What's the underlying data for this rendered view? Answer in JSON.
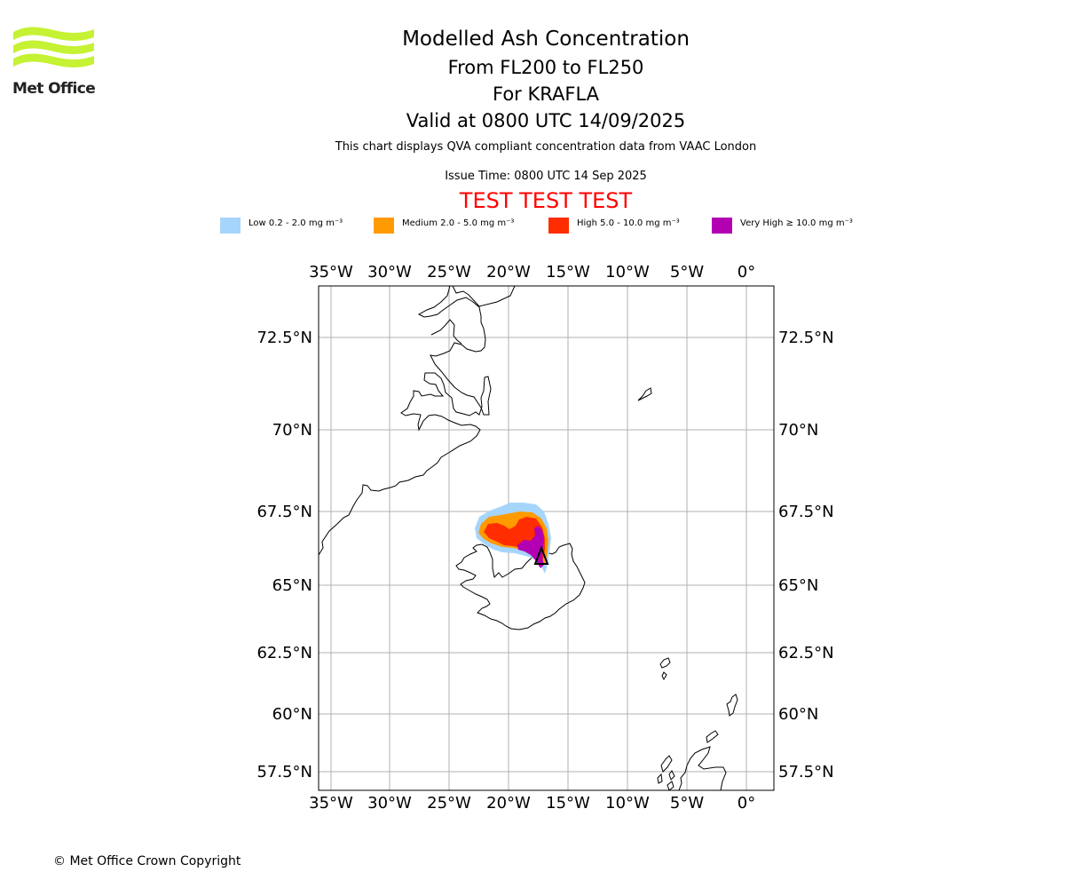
{
  "header": {
    "logo_text": "Met Office",
    "title": "Modelled Ash Concentration",
    "flight_levels": "From FL200 to FL250",
    "volcano": "For KRAFLA",
    "valid_time": "Valid at 0800 UTC 14/09/2025",
    "description": "This chart displays QVA compliant concentration data from VAAC London",
    "issue_time": "Issue Time: 0800 UTC 14 Sep 2025",
    "test_banner": "TEST TEST TEST"
  },
  "legend": [
    {
      "label": "Low 0.2 - 2.0 mg m⁻³",
      "color": "#a6d5fb"
    },
    {
      "label": "Medium 2.0 - 5.0 mg m⁻³",
      "color": "#ff9a00"
    },
    {
      "label": "High 5.0 - 10.0 mg m⁻³",
      "color": "#ff2d00"
    },
    {
      "label": "Very High ≥ 10.0 mg m⁻³",
      "color": "#b200b2"
    }
  ],
  "map": {
    "lon_ticks": [
      "35°W",
      "30°W",
      "25°W",
      "20°W",
      "15°W",
      "10°W",
      "5°W",
      "0°"
    ],
    "lat_ticks": [
      "72.5°N",
      "70°N",
      "67.5°N",
      "65°N",
      "62.5°N",
      "60°N",
      "57.5°N"
    ],
    "gridlines": true,
    "gridline_color": "#b0b0b0",
    "coastline_color": "#000000",
    "volcano_marker": "triangle-icon"
  },
  "footer": {
    "copyright": "© Met Office Crown Copyright"
  }
}
